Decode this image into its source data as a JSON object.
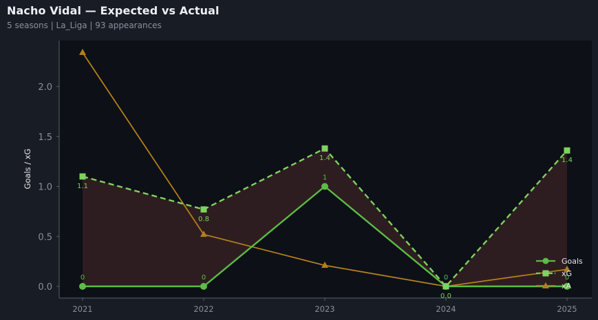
{
  "header": {
    "title": "Nacho Vidal — Expected vs Actual",
    "subtitle": "5 seasons | La_Liga | 93 appearances"
  },
  "colors": {
    "background": "#181c24",
    "plot_background": "#0d1017",
    "goals": "#5bbd45",
    "xg": "#7ed35f",
    "xa": "#b37f1c",
    "fill_between": "#2e1d20",
    "axis": "#5a5f69",
    "tick_text": "#8b909b"
  },
  "legend": {
    "items": [
      {
        "label": "Goals",
        "marker": "circle",
        "style": "solid"
      },
      {
        "label": "xG",
        "marker": "square",
        "style": "dashed"
      },
      {
        "label": "xA",
        "marker": "triangle",
        "style": "solid"
      }
    ]
  },
  "axes": {
    "ylabel": "Goals / xG",
    "yticks": [
      "0.0",
      "0.5",
      "1.0",
      "1.5",
      "2.0"
    ],
    "xticks": [
      "2021",
      "2022",
      "2023",
      "2024",
      "2025"
    ]
  },
  "data_labels": {
    "goals": [
      "0",
      "0",
      "1",
      "0",
      "0"
    ],
    "xg": [
      "1.1",
      "0.8",
      "1.4",
      "0.0",
      "1.4"
    ]
  },
  "chart_data": {
    "type": "line",
    "title": "Nacho Vidal — Expected vs Actual",
    "subtitle": "5 seasons | La_Liga | 93 appearances",
    "xlabel": "",
    "ylabel": "Goals / xG",
    "x": [
      2021,
      2022,
      2023,
      2024,
      2025
    ],
    "categories": [
      "2021",
      "2022",
      "2023",
      "2024",
      "2025"
    ],
    "series": [
      {
        "name": "Goals",
        "values": [
          0,
          0,
          1,
          0,
          0
        ],
        "marker": "circle",
        "linestyle": "solid",
        "color": "#5bbd45"
      },
      {
        "name": "xG",
        "values": [
          1.1,
          0.77,
          1.38,
          0.0,
          1.36
        ],
        "marker": "square",
        "linestyle": "dashed",
        "color": "#7ed35f"
      },
      {
        "name": "xA",
        "values": [
          2.34,
          0.52,
          0.21,
          0.0,
          0.17
        ],
        "marker": "triangle",
        "linestyle": "solid",
        "color": "#b37f1c"
      }
    ],
    "fill_between": {
      "upper": "xG",
      "lower": "Goals",
      "color": "#2e1d20"
    },
    "ylim": [
      -0.11,
      2.47
    ],
    "yticks": [
      0.0,
      0.5,
      1.0,
      1.5,
      2.0
    ],
    "grid": false,
    "legend_position": "lower right"
  }
}
